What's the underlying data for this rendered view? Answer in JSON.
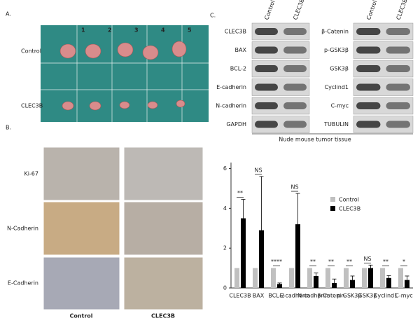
{
  "panel_labels": [
    "A.",
    "B.",
    "C."
  ],
  "panel_a": {
    "ruler": [
      "1",
      "2",
      "3",
      "4",
      "5"
    ],
    "rows": [
      "Control",
      "CLEC3B"
    ]
  },
  "panel_b": {
    "rows": [
      "Ki-67",
      "N-Cadherin",
      "E-Cadherin"
    ],
    "columns": [
      "Control",
      "CLEC3B"
    ]
  },
  "panel_c": {
    "columns_left": [
      "Control",
      "CLEC3B"
    ],
    "columns_right": [
      "Control",
      "CLEC3B"
    ],
    "left_labels": [
      "CLEC3B",
      "BAX",
      "BCL-2",
      "E-cadherin",
      "N-cadherin",
      "GAPDH"
    ],
    "right_labels": [
      "β-Catenin",
      "p-GSK3β",
      "GSK3β",
      "Cyclind1",
      "C-myc",
      "TUBULIN"
    ],
    "caption": "Nude mouse tumor tissue"
  },
  "chart_data": {
    "type": "bar",
    "categories": [
      "CLEC3B",
      "BAX",
      "BCL-2",
      "E-cadherin",
      "N-cadherin",
      "β-Catenin",
      "p-GSK3β",
      "GSK3β",
      "Cyclind1",
      "C-myc"
    ],
    "series": [
      {
        "name": "Control",
        "color": "#c0c0c0",
        "values": [
          1,
          1,
          1,
          1,
          1,
          1,
          1,
          1,
          1,
          1
        ]
      },
      {
        "name": "CLEC3B",
        "color": "#000000",
        "values": [
          3.5,
          2.9,
          0.2,
          3.2,
          0.6,
          0.25,
          0.4,
          1.0,
          0.5,
          0.4
        ],
        "errors": [
          0.95,
          2.7,
          0.05,
          1.55,
          0.15,
          0.2,
          0.2,
          0.15,
          0.12,
          0.2
        ]
      }
    ],
    "significance": [
      "**",
      "NS",
      "****",
      "NS",
      "**",
      "**",
      "**",
      "NS",
      "**",
      "*"
    ],
    "ylim": [
      0,
      6.3
    ],
    "yticks": [
      0,
      2,
      4,
      6
    ],
    "legend": "upper right"
  }
}
